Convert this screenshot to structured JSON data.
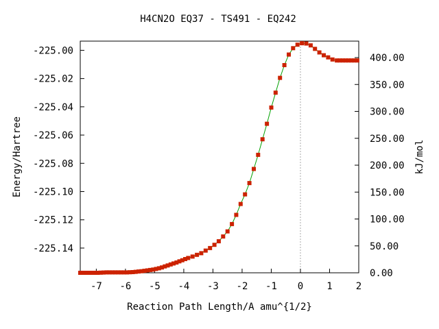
{
  "chart_data": {
    "type": "line",
    "title": "H4CN2O   EQ37 - TS491 - EQ242",
    "xlabel": "Reaction Path Length/A amu^{1/2}",
    "ylabel": "Energy/Hartree",
    "y2label": "kJ/mol",
    "xlim": [
      -7.55,
      2.0
    ],
    "ylim": [
      -225.1575,
      -224.9935
    ],
    "y2lim": [
      0.0,
      430.6
    ],
    "x_ticks": [
      "-7",
      "-6",
      "-5",
      "-4",
      "-3",
      "-2",
      "-1",
      "0",
      "1",
      "2"
    ],
    "x_tick_values": [
      -7,
      -6,
      -5,
      -4,
      -3,
      -2,
      -1,
      0,
      1,
      2
    ],
    "y_ticks": [
      "-225.00",
      "-225.02",
      "-225.04",
      "-225.06",
      "-225.08",
      "-225.10",
      "-225.12",
      "-225.14"
    ],
    "y_tick_values": [
      -225.0,
      -225.02,
      -225.04,
      -225.06,
      -225.08,
      -225.1,
      -225.12,
      -225.14
    ],
    "y2_ticks": [
      "400.00",
      "350.00",
      "300.00",
      "250.00",
      "200.00",
      "150.00",
      "100.00",
      "50.00",
      "0.00"
    ],
    "y2_tick_values": [
      400,
      350,
      300,
      250,
      200,
      150,
      100,
      50,
      0
    ],
    "ts_x": 0.0,
    "line_color": "#00a000",
    "marker_color": "#cc2200",
    "series": [
      {
        "x": [
          -7.55,
          -7.45,
          -7.35,
          -7.25,
          -7.15,
          -7.05,
          -6.95,
          -6.85,
          -6.75,
          -6.65,
          -6.55,
          -6.45,
          -6.35,
          -6.25,
          -6.15,
          -6.05,
          -5.95,
          -5.85,
          -5.75,
          -5.65,
          -5.55,
          -5.45,
          -5.35,
          -5.25,
          -5.15,
          -5.05,
          -4.95,
          -4.85,
          -4.75,
          -4.65,
          -4.55,
          -4.45,
          -4.35,
          -4.25,
          -4.15,
          -4.05,
          -3.95,
          -3.85,
          -3.7,
          -3.55,
          -3.4,
          -3.25,
          -3.1,
          -2.95,
          -2.8,
          -2.65,
          -2.5,
          -2.35,
          -2.2,
          -2.05,
          -1.9,
          -1.75,
          -1.6,
          -1.45,
          -1.3,
          -1.15,
          -1.0,
          -0.85,
          -0.7,
          -0.55,
          -0.4,
          -0.25,
          -0.1,
          0.05,
          0.2,
          0.35,
          0.5,
          0.65,
          0.8,
          0.95,
          1.1,
          1.25,
          1.35,
          1.45,
          1.55,
          1.65,
          1.75,
          1.85,
          1.95
        ],
        "y": [
          -225.1575,
          -225.1575,
          -225.1575,
          -225.1575,
          -225.1575,
          -225.1575,
          -225.1575,
          -225.1574,
          -225.1573,
          -225.1572,
          -225.1572,
          -225.1572,
          -225.1572,
          -225.1572,
          -225.1572,
          -225.1572,
          -225.1572,
          -225.1571,
          -225.157,
          -225.1568,
          -225.1566,
          -225.1564,
          -225.1561,
          -225.1558,
          -225.1555,
          -225.1552,
          -225.1548,
          -225.1543,
          -225.1537,
          -225.153,
          -225.1523,
          -225.1516,
          -225.1509,
          -225.1502,
          -225.1494,
          -225.1486,
          -225.1478,
          -225.147,
          -225.146,
          -225.1448,
          -225.1436,
          -225.1418,
          -225.14,
          -225.1377,
          -225.1352,
          -225.1318,
          -225.1282,
          -225.123,
          -225.1165,
          -225.1088,
          -225.102,
          -225.094,
          -225.084,
          -225.074,
          -225.063,
          -225.052,
          -225.0405,
          -225.03,
          -225.0195,
          -225.0105,
          -225.003,
          -224.9985,
          -224.996,
          -224.995,
          -224.9952,
          -224.9965,
          -224.999,
          -225.0015,
          -225.0035,
          -225.005,
          -225.0065,
          -225.0072,
          -225.0072,
          -225.0072,
          -225.0072,
          -225.0072,
          -225.0072,
          -225.0072,
          -225.0072
        ]
      }
    ]
  }
}
